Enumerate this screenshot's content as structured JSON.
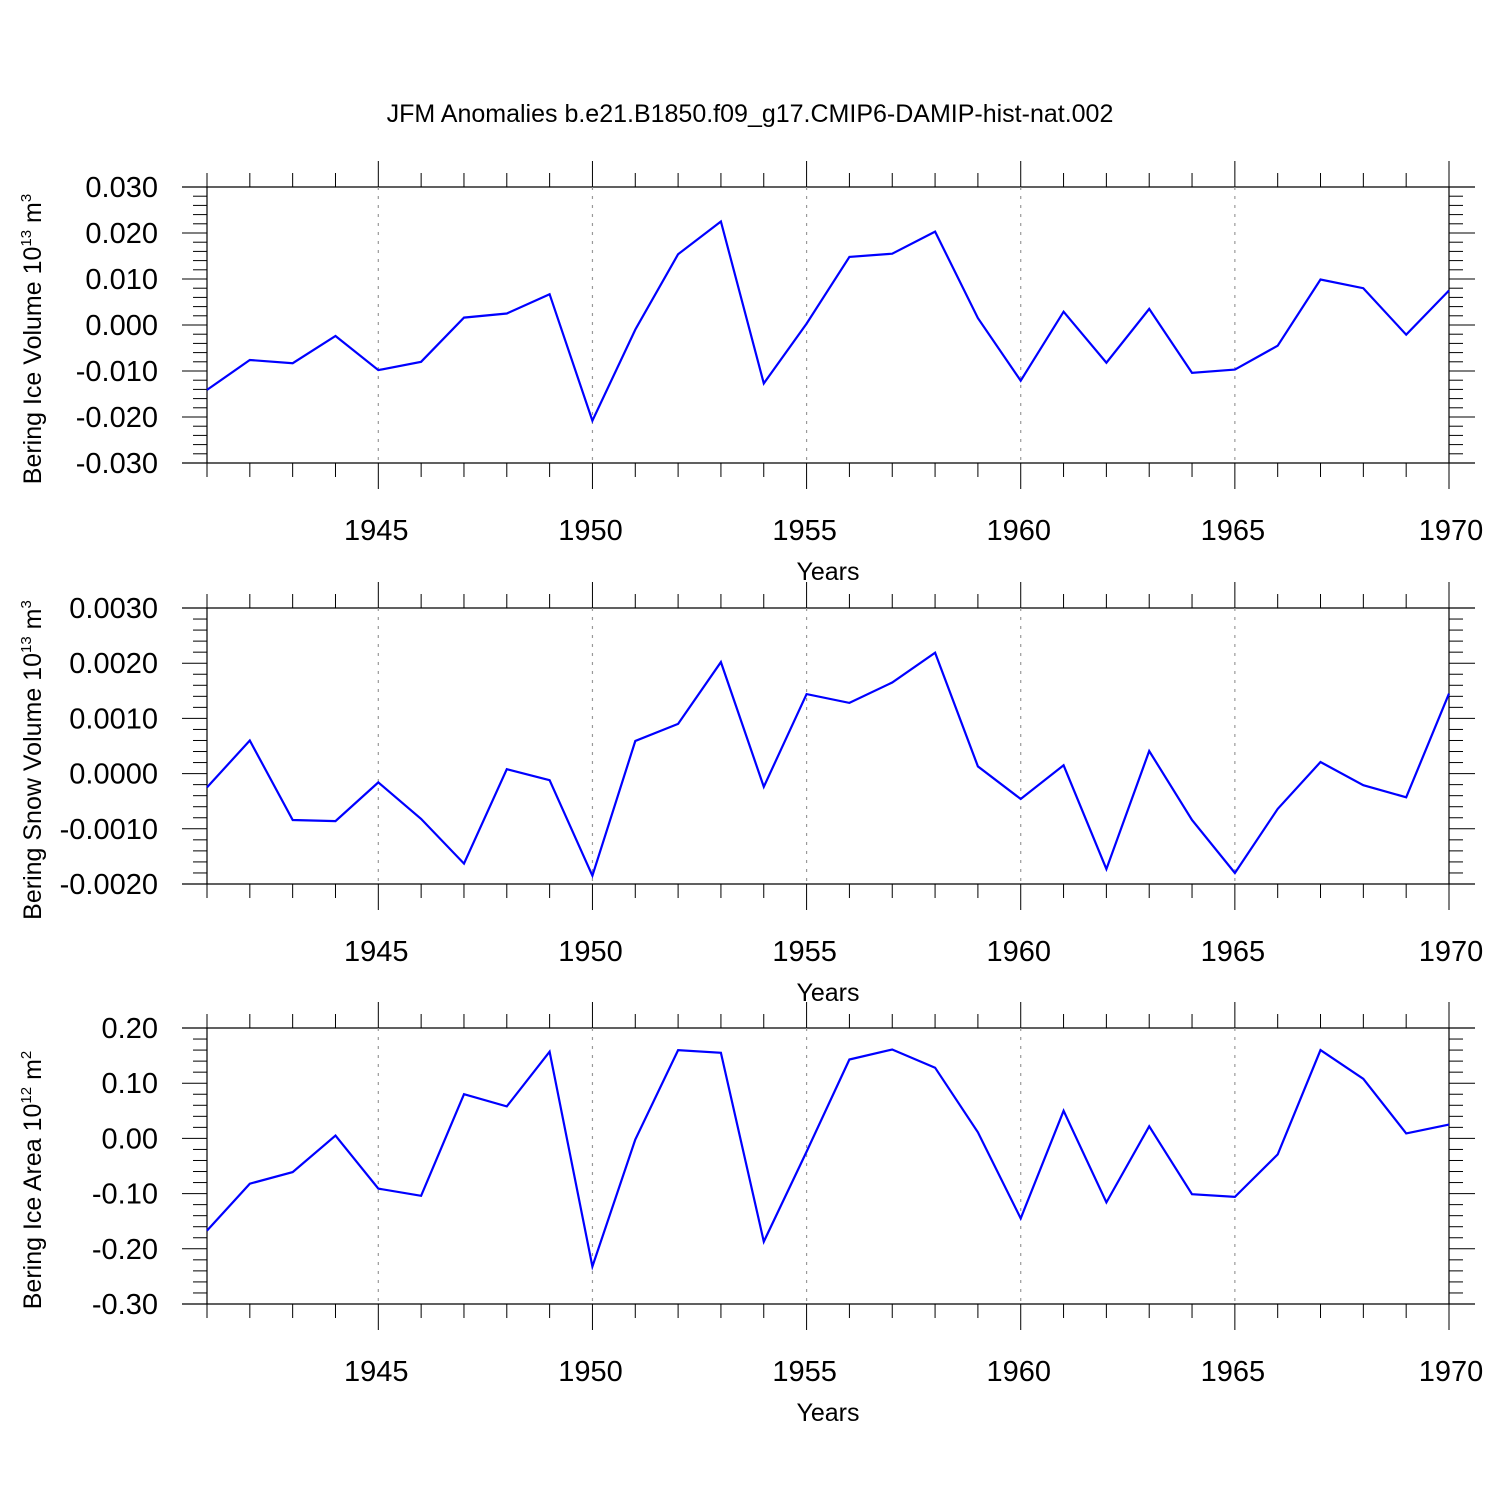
{
  "title": "JFM Anomalies b.e21.B1850.f09_g17.CMIP6-DAMIP-hist-nat.002",
  "chart_data": [
    {
      "type": "line",
      "title": "",
      "ylabel_main": "Bering Ice Volume 10",
      "ylabel_exp": "13",
      "ylabel_unit": " m",
      "ylabel_unit_exp": "3",
      "xlabel": "Years",
      "xlim": [
        1941,
        1970
      ],
      "ylim": [
        -0.03,
        0.03
      ],
      "yticks": [
        -0.03,
        -0.02,
        -0.01,
        0.0,
        0.01,
        0.02,
        0.03
      ],
      "ytick_labels": [
        "-0.030",
        "-0.020",
        "-0.010",
        "0.000",
        "0.010",
        "0.020",
        "0.030"
      ],
      "xticks": [
        1945,
        1950,
        1955,
        1960,
        1965,
        1970
      ],
      "xtick_labels": [
        "1945",
        "1950",
        "1955",
        "1960",
        "1965",
        "1970"
      ],
      "x": [
        1941,
        1942,
        1943,
        1944,
        1945,
        1946,
        1947,
        1948,
        1949,
        1950,
        1951,
        1952,
        1953,
        1954,
        1955,
        1956,
        1957,
        1958,
        1959,
        1960,
        1961,
        1962,
        1963,
        1964,
        1965,
        1966,
        1967,
        1968,
        1969,
        1970
      ],
      "series": [
        {
          "name": "Bering Ice Volume",
          "color": "#0000ff",
          "values": [
            -0.0141,
            -0.0076,
            -0.0083,
            -0.0024,
            -0.0098,
            -0.008,
            0.0016,
            0.0025,
            0.0067,
            -0.0208,
            -0.001,
            0.0154,
            0.0225,
            -0.0127,
            0.0003,
            0.0148,
            0.0155,
            0.0203,
            0.0015,
            -0.0121,
            0.0029,
            -0.0082,
            0.0035,
            -0.0104,
            -0.0097,
            -0.0045,
            0.0099,
            0.008,
            -0.0021,
            0.0075
          ]
        }
      ]
    },
    {
      "type": "line",
      "title": "",
      "ylabel_main": "Bering Snow Volume 10",
      "ylabel_exp": "13",
      "ylabel_unit": " m",
      "ylabel_unit_exp": "3",
      "xlabel": "Years",
      "xlim": [
        1941,
        1970
      ],
      "ylim": [
        -0.002,
        0.003
      ],
      "yticks": [
        -0.002,
        -0.001,
        0.0,
        0.001,
        0.002,
        0.003
      ],
      "ytick_labels": [
        "-0.0020",
        "-0.0010",
        "0.0000",
        "0.0010",
        "0.0020",
        "0.0030"
      ],
      "xticks": [
        1945,
        1950,
        1955,
        1960,
        1965,
        1970
      ],
      "xtick_labels": [
        "1945",
        "1950",
        "1955",
        "1960",
        "1965",
        "1970"
      ],
      "x": [
        1941,
        1942,
        1943,
        1944,
        1945,
        1946,
        1947,
        1948,
        1949,
        1950,
        1951,
        1952,
        1953,
        1954,
        1955,
        1956,
        1957,
        1958,
        1959,
        1960,
        1961,
        1962,
        1963,
        1964,
        1965,
        1966,
        1967,
        1968,
        1969,
        1970
      ],
      "series": [
        {
          "name": "Bering Snow Volume",
          "color": "#0000ff",
          "values": [
            -0.00025,
            0.0006,
            -0.00084,
            -0.00086,
            -0.00016,
            -0.00082,
            -0.00163,
            8e-05,
            -0.00012,
            -0.00185,
            0.00059,
            0.0009,
            0.00202,
            -0.00024,
            0.00144,
            0.00128,
            0.00165,
            0.00219,
            0.00013,
            -0.00046,
            0.00015,
            -0.00173,
            0.00041,
            -0.00084,
            -0.0018,
            -0.00064,
            0.00021,
            -0.00021,
            -0.00043,
            0.00145
          ]
        }
      ]
    },
    {
      "type": "line",
      "title": "",
      "ylabel_main": "Bering Ice Area 10",
      "ylabel_exp": "12",
      "ylabel_unit": " m",
      "ylabel_unit_exp": "2",
      "xlabel": "Years",
      "xlim": [
        1941,
        1970
      ],
      "ylim": [
        -0.3,
        0.2
      ],
      "yticks": [
        -0.3,
        -0.2,
        -0.1,
        0.0,
        0.1,
        0.2
      ],
      "ytick_labels": [
        "-0.30",
        "-0.20",
        "-0.10",
        "0.00",
        "0.10",
        "0.20"
      ],
      "xticks": [
        1945,
        1950,
        1955,
        1960,
        1965,
        1970
      ],
      "xtick_labels": [
        "1945",
        "1950",
        "1955",
        "1960",
        "1965",
        "1970"
      ],
      "x": [
        1941,
        1942,
        1943,
        1944,
        1945,
        1946,
        1947,
        1948,
        1949,
        1950,
        1951,
        1952,
        1953,
        1954,
        1955,
        1956,
        1957,
        1958,
        1959,
        1960,
        1961,
        1962,
        1963,
        1964,
        1965,
        1966,
        1967,
        1968,
        1969,
        1970
      ],
      "series": [
        {
          "name": "Bering Ice Area",
          "color": "#0000ff",
          "values": [
            -0.167,
            -0.082,
            -0.061,
            0.005,
            -0.091,
            -0.104,
            0.08,
            0.058,
            0.157,
            -0.232,
            -0.002,
            0.16,
            0.155,
            -0.187,
            -0.024,
            0.143,
            0.161,
            0.128,
            0.011,
            -0.145,
            0.05,
            -0.116,
            0.022,
            -0.101,
            -0.106,
            -0.029,
            0.16,
            0.108,
            0.009,
            0.025
          ]
        }
      ]
    }
  ]
}
